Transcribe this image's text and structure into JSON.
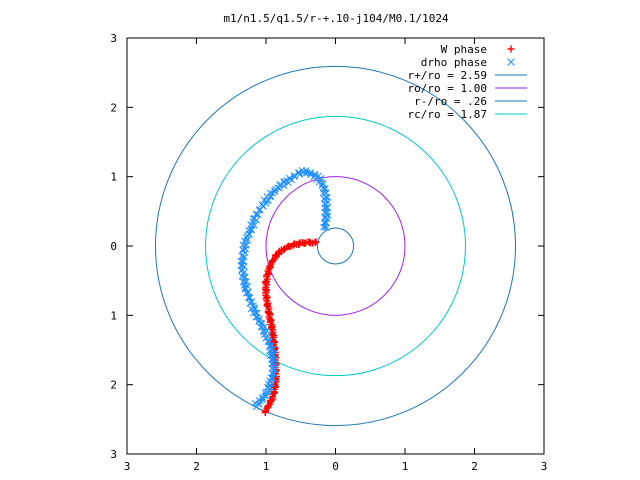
{
  "chart_data": {
    "type": "scatter",
    "title": "m1/n1.5/q1.5/r-+.10-j104/M0.1/1024",
    "xlabel": "",
    "ylabel": "",
    "xlim": [
      -3,
      3
    ],
    "ylim": [
      -3,
      3
    ],
    "x_ticks": [
      -3,
      -2,
      -1,
      0,
      1,
      2,
      3
    ],
    "y_ticks": [
      -3,
      -2,
      -1,
      0,
      1,
      2,
      3
    ],
    "x_tick_labels": [
      "3",
      "2",
      "1",
      "0",
      "1",
      "2",
      "3"
    ],
    "y_tick_labels": [
      "3",
      "2",
      "1",
      "0",
      "1",
      "2",
      "3"
    ],
    "grid": false,
    "legend_position": "top-right",
    "legend": [
      {
        "label": "W phase",
        "kind": "marker",
        "marker": "+",
        "color": "#ff0000"
      },
      {
        "label": "drho phase",
        "kind": "marker",
        "marker": "x",
        "color": "#1e90ff"
      },
      {
        "label": "r+/ro = 2.59",
        "kind": "circle",
        "radius": 2.59,
        "color": "#1f77b4"
      },
      {
        "label": "ro/ro = 1.00",
        "kind": "circle",
        "radius": 1.0,
        "color": "#a020f0"
      },
      {
        "label": "r-/ro = .26",
        "kind": "circle",
        "radius": 0.26,
        "color": "#1f77b4"
      },
      {
        "label": "rc/ro = 1.87",
        "kind": "circle",
        "radius": 1.87,
        "color": "#00c8c8"
      }
    ],
    "series": [
      {
        "name": "W phase",
        "marker": "+",
        "color": "#ff0000",
        "x": [
          -0.28,
          -0.4,
          -0.5,
          -0.6,
          -0.7,
          -0.8,
          -0.87,
          -0.93,
          -0.97,
          -1.0,
          -1.0,
          -0.98,
          -0.95,
          -0.92,
          -0.9,
          -0.88,
          -0.87,
          -0.86,
          -0.86,
          -0.87,
          -0.89,
          -0.92,
          -0.95,
          -0.98,
          -1.0,
          -1.02
        ],
        "y": [
          0.05,
          0.05,
          0.04,
          0.02,
          -0.02,
          -0.08,
          -0.16,
          -0.26,
          -0.38,
          -0.52,
          -0.68,
          -0.84,
          -1.0,
          -1.15,
          -1.3,
          -1.45,
          -1.6,
          -1.75,
          -1.9,
          -2.03,
          -2.13,
          -2.22,
          -2.28,
          -2.33,
          -2.37,
          -2.4
        ]
      },
      {
        "name": "drho phase",
        "marker": "x",
        "color": "#1e90ff",
        "x": [
          -0.15,
          -0.14,
          -0.13,
          -0.14,
          -0.17,
          -0.22,
          -0.3,
          -0.38,
          -0.46,
          -0.55,
          -0.63,
          -0.72,
          -0.82,
          -0.92,
          -1.02,
          -1.12,
          -1.2,
          -1.27,
          -1.32,
          -1.34,
          -1.33,
          -1.3,
          -1.25,
          -1.2,
          -1.14,
          -1.08,
          -1.02,
          -0.98,
          -0.94,
          -0.92,
          -0.9,
          -0.89,
          -0.9,
          -0.92,
          -0.96,
          -1.0,
          -1.05,
          -1.1,
          -1.15
        ],
        "y": [
          0.25,
          0.4,
          0.55,
          0.7,
          0.85,
          0.95,
          1.02,
          1.06,
          1.07,
          1.04,
          0.98,
          0.92,
          0.85,
          0.75,
          0.62,
          0.48,
          0.3,
          0.12,
          -0.05,
          -0.22,
          -0.4,
          -0.56,
          -0.72,
          -0.86,
          -0.99,
          -1.11,
          -1.23,
          -1.34,
          -1.44,
          -1.54,
          -1.64,
          -1.74,
          -1.84,
          -1.94,
          -2.04,
          -2.13,
          -2.2,
          -2.26,
          -2.31
        ]
      }
    ]
  }
}
